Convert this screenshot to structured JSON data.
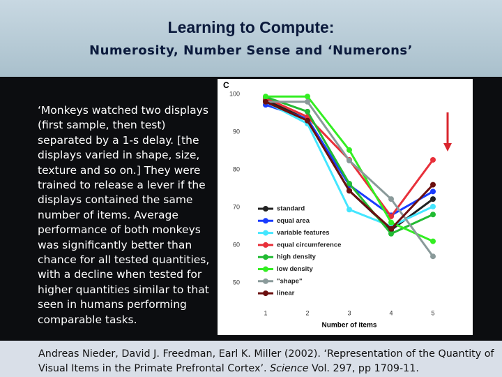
{
  "header": {
    "title": "Learning to Compute:",
    "subtitle": "Numerosity, Number Sense and ‘Numerons’"
  },
  "body": {
    "text": "‘Monkeys watched two displays (first sample, then test) separated by a 1-s delay. [the displays varied in shape, size, texture and so on.] They were trained to release a lever if the displays contained the same number of items. Average performance of both monkeys was significantly better than chance for all tested quantities, with a decline when tested for higher quantities similar to that seen in humans performing comparable tasks."
  },
  "citation": {
    "before": "Andreas Nieder, David J. Freedman, Earl K. Miller (2002).  ‘Representation of the Quantity of Visual Items in the Primate Prefrontal Cortex’.",
    "journal": "Science",
    "after": "Vol. 297, pp 1709-11."
  },
  "chart_data": {
    "type": "line",
    "panel_label": "C",
    "x_label": "Number of items",
    "x": [
      1,
      2,
      3,
      4,
      5
    ],
    "xlim": [
      0.5,
      5.5
    ],
    "xticks": [
      1,
      2,
      3,
      4,
      5
    ],
    "ylim": [
      50,
      100
    ],
    "yticks": [
      50,
      60,
      70,
      80,
      90,
      100
    ],
    "series": [
      {
        "name": "standard",
        "color": "#222222",
        "values": [
          98.5,
          93.3,
          74.4,
          64,
          72.2
        ]
      },
      {
        "name": "equal area",
        "color": "#1a3cff",
        "values": [
          97.2,
          93.5,
          75.9,
          67.9,
          74.2
        ]
      },
      {
        "name": "variable features",
        "color": "#44e6ff",
        "values": [
          98,
          92.2,
          69.4,
          65,
          70.2
        ]
      },
      {
        "name": "equal circumference",
        "color": "#e8303a",
        "values": [
          99,
          94,
          82.6,
          67.6,
          82.6
        ]
      },
      {
        "name": "high density",
        "color": "#22bb33",
        "values": [
          99.3,
          95.4,
          76.3,
          63,
          68.1
        ]
      },
      {
        "name": "low density",
        "color": "#33ee22",
        "values": [
          99.4,
          99.4,
          85.2,
          66,
          61
        ]
      },
      {
        "name": "\"shape\"",
        "color": "#8a9a9a",
        "values": [
          98,
          98,
          82.4,
          72.2,
          57
        ]
      },
      {
        "name": "linear",
        "color": "#6b0f0f",
        "values": [
          98,
          93,
          74.4,
          64.3,
          76
        ]
      }
    ]
  }
}
